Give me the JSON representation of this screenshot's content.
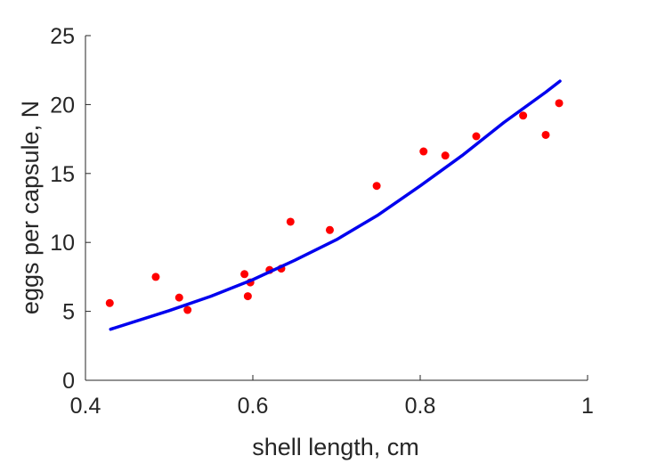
{
  "chart_data": {
    "type": "scatter",
    "xlabel": "shell length, cm",
    "ylabel": "eggs per capsule, N",
    "xlim": [
      0.4,
      1.0
    ],
    "ylim": [
      0,
      25
    ],
    "xticks": [
      0.4,
      0.6,
      0.8,
      1.0
    ],
    "xtick_labels": [
      "0.4",
      "0.6",
      "0.8",
      "1"
    ],
    "yticks": [
      0,
      5,
      10,
      15,
      20,
      25
    ],
    "ytick_labels": [
      "0",
      "5",
      "10",
      "15",
      "20",
      "25"
    ],
    "grid": false,
    "legend": "none",
    "series": [
      {
        "kind": "scatter",
        "color": "#ff0000",
        "points": [
          [
            0.429,
            5.6
          ],
          [
            0.484,
            7.5
          ],
          [
            0.512,
            6.0
          ],
          [
            0.522,
            5.1
          ],
          [
            0.59,
            7.7
          ],
          [
            0.594,
            6.1
          ],
          [
            0.597,
            7.1
          ],
          [
            0.62,
            8.0
          ],
          [
            0.634,
            8.1
          ],
          [
            0.645,
            11.5
          ],
          [
            0.692,
            10.9
          ],
          [
            0.748,
            14.1
          ],
          [
            0.804,
            16.6
          ],
          [
            0.83,
            16.3
          ],
          [
            0.867,
            17.7
          ],
          [
            0.923,
            19.2
          ],
          [
            0.95,
            17.8
          ],
          [
            0.966,
            20.1
          ]
        ]
      },
      {
        "kind": "line",
        "color": "#0000ee",
        "points": [
          [
            0.43,
            3.7
          ],
          [
            0.5,
            5.05
          ],
          [
            0.55,
            6.1
          ],
          [
            0.6,
            7.3
          ],
          [
            0.65,
            8.7
          ],
          [
            0.7,
            10.2
          ],
          [
            0.75,
            12.0
          ],
          [
            0.8,
            14.1
          ],
          [
            0.85,
            16.3
          ],
          [
            0.9,
            18.7
          ],
          [
            0.95,
            20.9
          ],
          [
            0.967,
            21.7
          ]
        ]
      }
    ]
  }
}
